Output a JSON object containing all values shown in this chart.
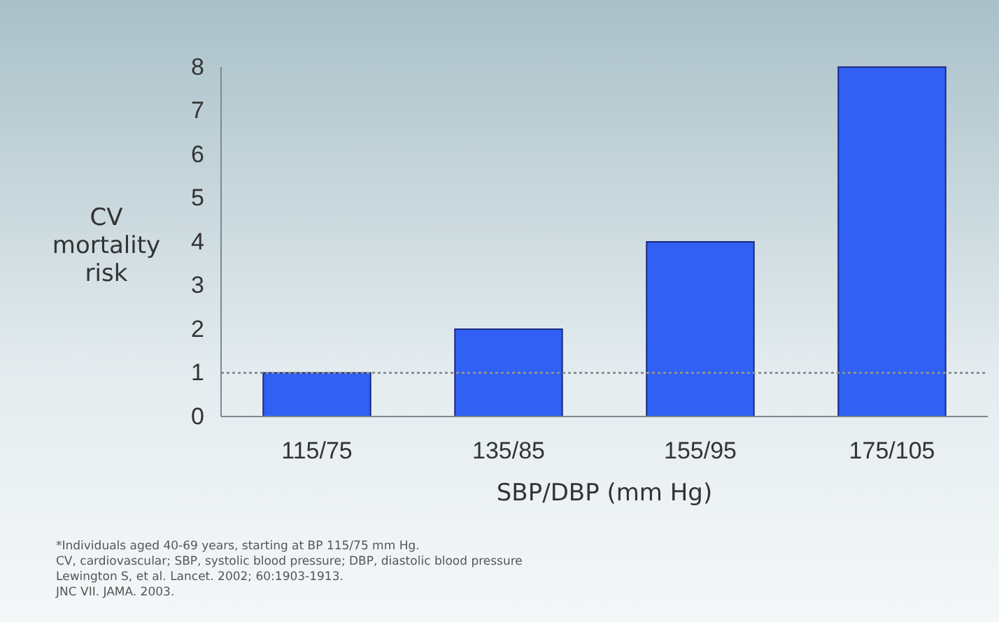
{
  "chart_data": {
    "type": "bar",
    "xlabel": "SBP/DBP (mm Hg)",
    "ylabel": "CV mortality risk",
    "categories": [
      "115/75",
      "135/85",
      "155/95",
      "175/105"
    ],
    "values": [
      1,
      2,
      4,
      8
    ],
    "color": "#3060f4",
    "ylim": [
      0,
      8
    ],
    "yticks": [
      0,
      1,
      2,
      3,
      4,
      5,
      6,
      7,
      8
    ],
    "grid": false,
    "ref_lines": [
      {
        "axis": "y",
        "value": 1,
        "color": "#8a9296",
        "line_style": "dotted"
      }
    ],
    "annotations": [
      "*Individuals aged 40-69 years, starting at BP 115/75 mm Hg.",
      "CV, cardiovascular; SBP, systolic blood pressure; DBP, diastolic blood pressure",
      "Lewington S, et al. Lancet. 2002; 60:1903-1913.",
      "JNC VII. JAMA. 2003."
    ]
  }
}
